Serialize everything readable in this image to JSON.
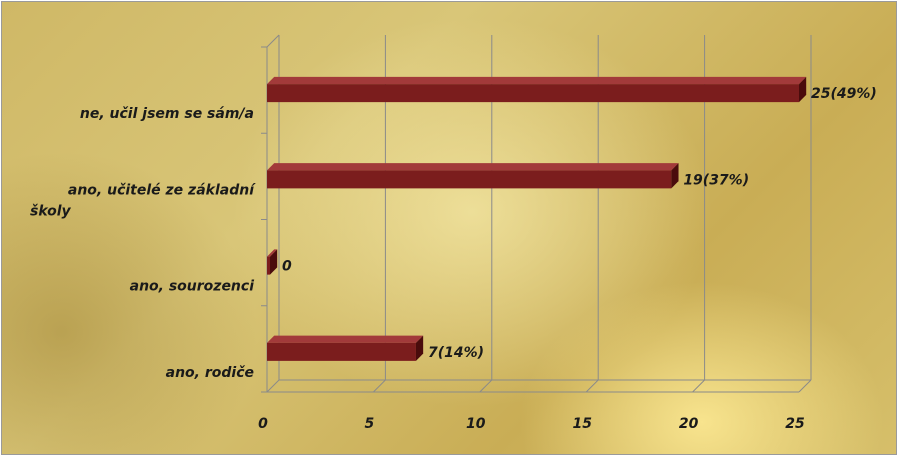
{
  "chart_data": {
    "type": "bar",
    "orientation": "horizontal",
    "categories": [
      "ne, učil jsem se sám/a",
      "ano, učitelé ze základní školy",
      "ano, sourozenci",
      "ano, rodiče"
    ],
    "values": [
      25,
      19,
      0,
      7
    ],
    "data_labels": [
      "25(49%)",
      "19(37%)",
      "0",
      "7(14%)"
    ],
    "xlim": [
      0,
      25
    ],
    "x_ticks": [
      "0",
      "5",
      "10",
      "15",
      "20",
      "25"
    ],
    "grid": true,
    "legend": "none",
    "title": "",
    "xlabel": "",
    "ylabel": ""
  },
  "colors": {
    "bar_front": "#7b1d1d",
    "bar_top": "#a23a3a",
    "bar_side": "#4a0c0c",
    "grid": "#8a8a8a"
  }
}
